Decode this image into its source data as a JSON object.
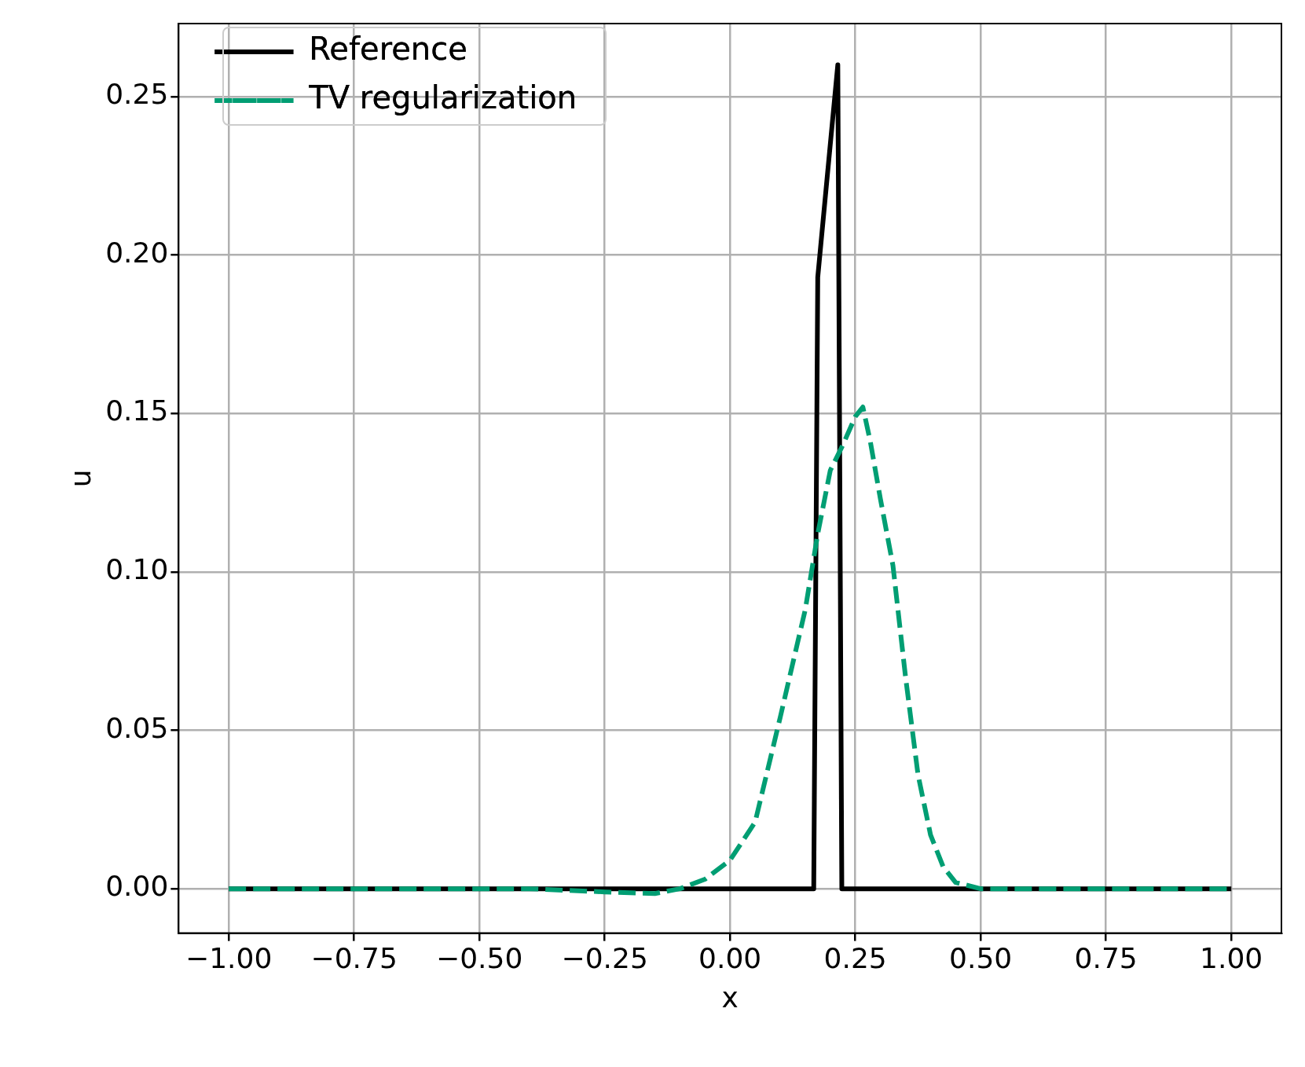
{
  "chart_data": {
    "type": "line",
    "xlabel": "x",
    "ylabel": "u",
    "xlim": [
      -1.1,
      1.1
    ],
    "ylim": [
      -0.014,
      0.273
    ],
    "xticks": [
      {
        "value": -1,
        "label": "−1.00"
      },
      {
        "value": -0.75,
        "label": "−0.75"
      },
      {
        "value": -0.5,
        "label": "−0.50"
      },
      {
        "value": -0.25,
        "label": "−0.25"
      },
      {
        "value": 0,
        "label": "0.00"
      },
      {
        "value": 0.25,
        "label": "0.25"
      },
      {
        "value": 0.5,
        "label": "0.50"
      },
      {
        "value": 0.75,
        "label": "0.75"
      },
      {
        "value": 1,
        "label": "1.00"
      }
    ],
    "yticks": [
      {
        "value": 0,
        "label": "0.00"
      },
      {
        "value": 0.05,
        "label": "0.05"
      },
      {
        "value": 0.1,
        "label": "0.10"
      },
      {
        "value": 0.15,
        "label": "0.15"
      },
      {
        "value": 0.2,
        "label": "0.20"
      },
      {
        "value": 0.25,
        "label": "0.25"
      }
    ],
    "grid": true,
    "legend": "top left",
    "series": [
      {
        "name": "Reference",
        "color": "#000000",
        "line_style": "solid",
        "x": [
          -1,
          0.167,
          0.175,
          0.215,
          0.223,
          1
        ],
        "values": [
          0,
          0,
          0.193,
          0.26,
          0,
          0
        ]
      },
      {
        "name": "TV regularization",
        "color": "#009e73",
        "line_style": "dashed",
        "x": [
          -1,
          -0.4,
          -0.25,
          -0.15,
          -0.1,
          -0.05,
          0,
          0.05,
          0.1,
          0.15,
          0.175,
          0.2,
          0.225,
          0.25,
          0.265,
          0.28,
          0.3,
          0.325,
          0.35,
          0.375,
          0.4,
          0.425,
          0.45,
          0.5,
          1
        ],
        "values": [
          0,
          0,
          -0.001,
          -0.0015,
          0,
          0.003,
          0.009,
          0.021,
          0.054,
          0.088,
          0.112,
          0.132,
          0.14,
          0.149,
          0.152,
          0.141,
          0.123,
          0.102,
          0.067,
          0.036,
          0.017,
          0.007,
          0.002,
          0,
          0
        ]
      }
    ]
  }
}
